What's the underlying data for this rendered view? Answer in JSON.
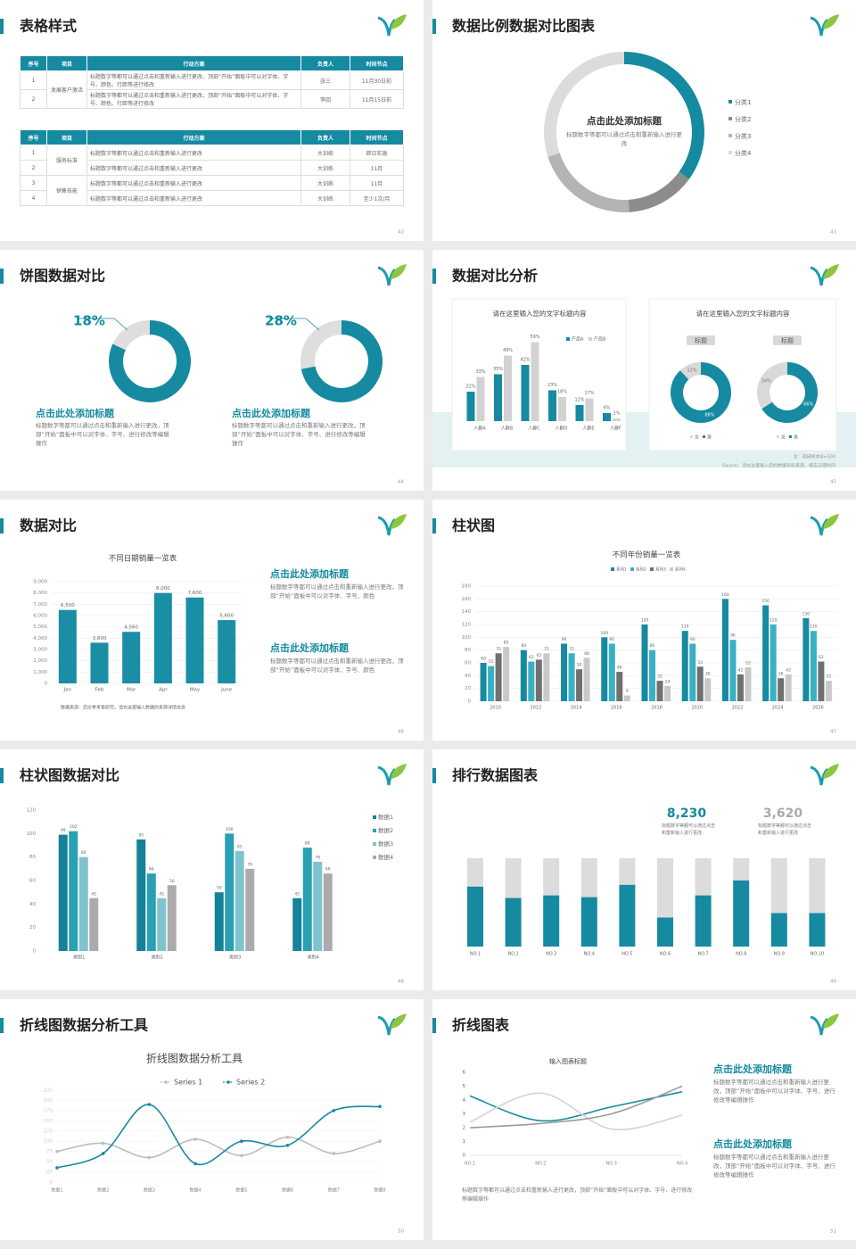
{
  "slides": [
    {
      "title": "表格样式",
      "page": "42",
      "tables": [
        {
          "header": [
            "序号",
            "项目",
            "行动方案",
            "负责人",
            "时间节点"
          ],
          "groups": [
            {
              "item": "发展客户激活",
              "rows": [
                [
                  "1",
                  "标题数字等都可以通过点击和重新输入进行更改，顶部“开始”面板中可以对字体、字号、颜色、行距等进行修改",
                  "张三",
                  "11月30日前"
                ],
                [
                  "2",
                  "标题数字等都可以通过点击和重新输入进行更改，顶部“开始”面板中可以对字体、字号、颜色、行距等进行修改",
                  "李四",
                  "11月15日前"
                ]
              ]
            }
          ]
        },
        {
          "header": [
            "序号",
            "项目",
            "行动方案",
            "负责人",
            "时间节点"
          ],
          "groups": [
            {
              "item": "服务标准",
              "rows": [
                [
                  "1",
                  "标题数字等都可以通过点击和重新输入进行更改",
                  "大训练",
                  "即日实施"
                ],
                [
                  "2",
                  "标题数字等都可以通过点击和重新输入进行更改",
                  "大训练",
                  "11月"
                ]
              ]
            },
            {
              "item": "销售技能",
              "rows": [
                [
                  "3",
                  "标题数字等都可以通过点击和重新输入进行更改",
                  "大训练",
                  "11月"
                ],
                [
                  "4",
                  "标题数字等都可以通过点击和重新输入进行更改",
                  "大训练",
                  "至少1次/月"
                ]
              ]
            }
          ]
        }
      ]
    },
    {
      "title": "数据比例数据对比图表",
      "page": "43",
      "chart": {
        "type": "donut",
        "center_title": "点击此处添加标题",
        "center_text": "标题数字等都可以通过点击和重新输入进行更改",
        "categories": [
          "分类1",
          "分类2",
          "分类3",
          "分类4"
        ],
        "values": [
          35,
          14,
          21,
          30
        ],
        "colors": [
          "#158aa1",
          "#8c8c8c",
          "#b4b4b4",
          "#dcdcdc"
        ]
      }
    },
    {
      "title": "饼图数据对比",
      "page": "44",
      "donuts": [
        {
          "values": [
            18
          ],
          "value_labels": [
            "18%"
          ],
          "heading": "点击此处添加标题",
          "text": "标题数字等都可以通过点击和重新输入进行更改，顶部“开始”面板中可以对字体、字号、进行修改等编辑操作"
        },
        {
          "values": [
            28
          ],
          "value_labels": [
            "28%"
          ],
          "heading": "点击此处添加标题",
          "text": "标题数字等都可以通过点击和重新输入进行更改，顶部“开始”面板中可以对字体、字号、进行修改等编辑操作"
        }
      ]
    },
    {
      "title": "数据对比分析",
      "page": "45",
      "chart": {
        "type": "bar",
        "title": "请在这里输入您的文字标题内容",
        "categories": [
          "人群A",
          "人群B",
          "人群C",
          "人群D",
          "人群E",
          "人群F"
        ],
        "series": [
          {
            "name": "产品A",
            "color": "#158aa1",
            "values": [
              22,
              35,
              42,
              23,
              12,
              6
            ],
            "value_labels": [
              "22%",
              "35%",
              "42%",
              "23%",
              "12%",
              "6%"
            ]
          },
          {
            "name": "产品B",
            "color": "#d2d2d2",
            "values": [
              33,
              49,
              59,
              18,
              17,
              2
            ],
            "value_labels": [
              "33%",
              "49%",
              "59%",
              "18%",
              "17%",
              "2%"
            ]
          }
        ]
      },
      "donut_card": {
        "title": "请在这里输入您的文字标题内容",
        "colors": [
          "#d9d9d9",
          "#158aa1"
        ],
        "donuts": [
          {
            "name": "标题",
            "legend": [
              "女",
              "男"
            ],
            "values": [
              12,
              88
            ],
            "value_labels": [
              "12%",
              "88%"
            ]
          },
          {
            "name": "标题",
            "legend": [
              "女",
              "男"
            ],
            "values": [
              34,
              66
            ],
            "value_labels": [
              "34%",
              "66%"
            ]
          }
        ]
      },
      "notes": [
        "注：调研样本N=500",
        "Source：请在这里输入您的数据资料来源，报告日期时间"
      ]
    },
    {
      "title": "数据对比",
      "page": "46",
      "chart": {
        "type": "bar",
        "title": "不同日期销量一览表",
        "categories": [
          "Jan",
          "Feb",
          "Mar",
          "Apr",
          "May",
          "June"
        ],
        "values": [
          6500,
          3600,
          4560,
          8000,
          7600,
          5600
        ],
        "value_labels": [
          "6,500",
          "3,600",
          "4,560",
          "8,000",
          "7,600",
          "5,600"
        ],
        "color": "#1a8ea5",
        "ylim": [
          0,
          9000
        ],
        "yticks": [
          0,
          {
            "value": 1000,
            "label": "1,000"
          },
          {
            "value": 2000,
            "label": "2,000"
          },
          {
            "value": 3000,
            "label": "3,000"
          },
          {
            "value": 4000,
            "label": "4,000"
          },
          {
            "value": 5000,
            "label": "5,000"
          },
          {
            "value": 6000,
            "label": "6,000"
          },
          {
            "value": 7000,
            "label": "7,000"
          },
          {
            "value": 8000,
            "label": "8,000"
          },
          {
            "value": 9000,
            "label": "9,000"
          }
        ],
        "source": "数据来源：后价参考看研究，请在这里输入数据的来源详情信息"
      },
      "blocks": [
        {
          "heading": "点击此处添加标题",
          "text": "标题数字等都可以通过点击和重新输入进行更改，顶部“开始”面板中可以对字体、字号、颜色"
        },
        {
          "heading": "点击此处添加标题",
          "text": "标题数字等都可以通过点击和重新输入进行更改，顶部“开始”面板中可以对字体、字号、颜色"
        }
      ]
    },
    {
      "title": "柱状图",
      "page": "47",
      "chart": {
        "type": "bar",
        "title": "不同年份销量一览表",
        "categories": [
          "2010",
          "2012",
          "2014",
          "2016",
          "2018",
          "2020",
          "2022",
          "2024",
          "2026"
        ],
        "series": [
          {
            "name": "系列1",
            "color": "#158aa1",
            "values": [
              60,
              80,
              90,
              100,
              120,
              110,
              160,
              150,
              130
            ]
          },
          {
            "name": "系列2",
            "color": "#3ab0c3",
            "values": [
              55,
              62,
              75,
              90,
              80,
              90,
              96,
              120,
              110
            ]
          },
          {
            "name": "系列3",
            "color": "#707070",
            "values": [
              75,
              65,
              50,
              46,
              32,
              54,
              42,
              36,
              62
            ]
          },
          {
            "name": "系列4",
            "color": "#c9c9c9",
            "values": [
              85,
              75,
              68,
              9,
              24,
              36,
              53,
              42,
              32
            ]
          }
        ],
        "ylim": [
          0,
          180
        ],
        "yticks": [
          0,
          20,
          40,
          60,
          80,
          100,
          120,
          140,
          160,
          180
        ]
      }
    },
    {
      "title": "柱状图数据对比",
      "page": "48",
      "chart": {
        "type": "bar",
        "categories": [
          "类别1",
          "类别2",
          "类别3",
          "类别4"
        ],
        "series": [
          {
            "name": "数据1",
            "color": "#15819a",
            "values": [
              99,
              95,
              50,
              45
            ]
          },
          {
            "name": "数据2",
            "color": "#2aa0b3",
            "values": [
              102,
              66,
              100,
              88
            ]
          },
          {
            "name": "数据3",
            "color": "#7fc3cf",
            "values": [
              80,
              45,
              85,
              76
            ]
          },
          {
            "name": "数据4",
            "color": "#ababab",
            "values": [
              45,
              56,
              70,
              66
            ]
          }
        ],
        "ylim": [
          0,
          120
        ],
        "yticks": [
          0,
          20,
          40,
          60,
          80,
          100,
          120
        ]
      }
    },
    {
      "title": "排行数据图表",
      "page": "49",
      "stats": [
        {
          "value": "8,230",
          "text": "标题数字等都可以通过点击和重新输入进行更改"
        },
        {
          "value": "3,620",
          "text": "标题数字等都可以通过点击和重新输入进行更改"
        }
      ],
      "chart": {
        "type": "stacked-bar",
        "categories": [
          "NO.1",
          "NO.2",
          "NO.3",
          "NO.4",
          "NO.5",
          "NO.6",
          "NO.7",
          "NO.8",
          "NO.9",
          "NO.10"
        ],
        "series": [
          {
            "color": "#158aa1",
            "values": [
              68,
              55,
              58,
              56,
              70,
              33,
              58,
              75,
              38,
              38
            ]
          },
          {
            "color": "#dcdcdc",
            "values": [
              32,
              45,
              42,
              44,
              30,
              67,
              42,
              25,
              62,
              62
            ]
          }
        ]
      }
    },
    {
      "title": "折线图数据分析工具",
      "page": "50",
      "chart": {
        "type": "line",
        "title": "折线图数据分析工具",
        "categories": [
          "数据1",
          "数据2",
          "数据3",
          "数据4",
          "数据5",
          "数据6",
          "数据7",
          "数据8"
        ],
        "series": [
          {
            "name": "Series 1",
            "color": "#bdbdbd",
            "values": [
              75,
              95,
              60,
              105,
              65,
              110,
              70,
              100
            ]
          },
          {
            "name": "Series 2",
            "color": "#158aa1",
            "values": [
              35,
              70,
              190,
              45,
              100,
              90,
              175,
              185
            ]
          }
        ],
        "ylim": [
          0,
          225
        ],
        "yticks": [
          0,
          25,
          50,
          75,
          100,
          125,
          150,
          175,
          200,
          225
        ],
        "smooth": true
      }
    },
    {
      "title": "折线图表",
      "page": "51",
      "chart": {
        "type": "line",
        "title": "输入图表标题",
        "categories": [
          "NO.1",
          "NO.2",
          "NO.3",
          "NO.4"
        ],
        "series": [
          {
            "color": "#158aa1",
            "values": [
              4.3,
              2.5,
              3.5,
              4.6
            ]
          },
          {
            "color": "#d4d4d4",
            "values": [
              2.4,
              4.5,
              1.9,
              2.9
            ]
          },
          {
            "color": "#9a9a9a",
            "values": [
              2.0,
              2.3,
              3.0,
              5.0
            ]
          }
        ],
        "ylim": [
          0,
          6
        ],
        "yticks": [
          0,
          1,
          2,
          3,
          4,
          5,
          6
        ],
        "smooth": true,
        "caption": "标题数字等都可以通过点击和重新输入进行更改，顶部“开始”面板中可以对字体、字号、进行修改等编辑操作"
      },
      "blocks": [
        {
          "heading": "点击此处添加标题",
          "text": "标题数字等都可以通过点击和重新输入进行更改，顶部“开始”面板中可以对字体、字号、进行修改等编辑操作"
        },
        {
          "heading": "点击此处添加标题",
          "text": "标题数字等都可以通过点击和重新输入进行更改，顶部“开始”面板中可以对字体、字号、进行修改等编辑操作"
        }
      ]
    }
  ]
}
